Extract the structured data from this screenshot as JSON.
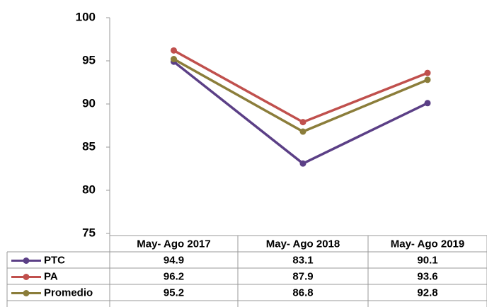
{
  "chart_data": {
    "type": "line",
    "categories": [
      "May- Ago 2017",
      "May- Ago 2018",
      "May- Ago 2019"
    ],
    "series": [
      {
        "name": "PTC",
        "color": "#5b3f86",
        "values": [
          94.9,
          83.1,
          90.1
        ]
      },
      {
        "name": "PA",
        "color": "#c0504d",
        "values": [
          96.2,
          87.9,
          93.6
        ]
      },
      {
        "name": "Promedio",
        "color": "#8b7d3a",
        "values": [
          95.2,
          86.8,
          92.8
        ]
      }
    ],
    "ylim": [
      75,
      100
    ],
    "yticks": [
      75,
      80,
      85,
      90,
      95,
      100
    ],
    "grid": false
  }
}
